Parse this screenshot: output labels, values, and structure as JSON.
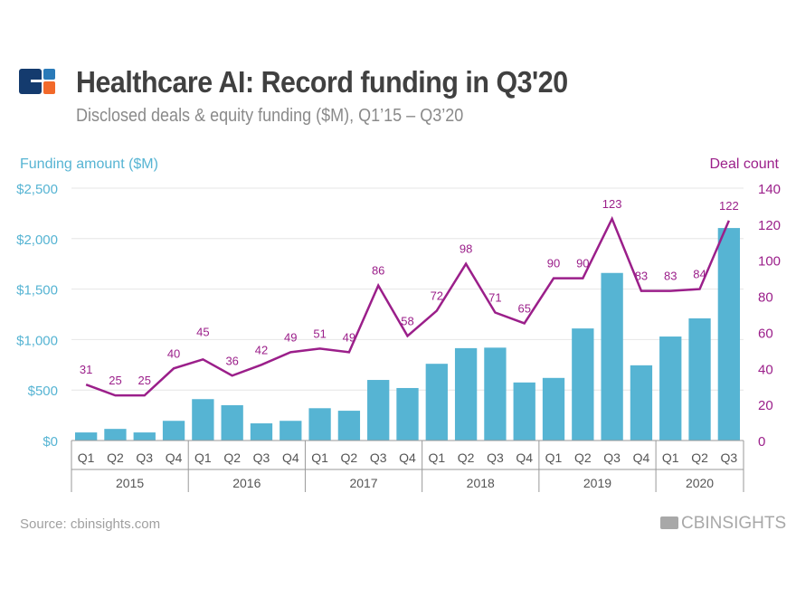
{
  "header": {
    "title": "Healthcare AI: Record funding in Q3'20",
    "subtitle": "Disclosed deals & equity funding ($M), Q1’15 – Q3’20"
  },
  "footer": {
    "source": "Source: cbinsights.com",
    "brand": "CBINSIGHTS"
  },
  "colors": {
    "bar": "#56b4d3",
    "line": "#9b1f8a",
    "logo_navy": "#143b6e",
    "logo_blue": "#2a7ab8",
    "logo_orange": "#f2692a"
  },
  "chart_data": {
    "type": "bar+line",
    "title": "Healthcare AI: Record funding in Q3'20",
    "ylabel": "Funding amount ($M)",
    "y2label": "Deal count",
    "ylim": [
      0,
      2500
    ],
    "y2lim": [
      0,
      140
    ],
    "yticks": [
      "$0",
      "$500",
      "$1,000",
      "$1,500",
      "$2,000",
      "$2,500"
    ],
    "y2ticks": [
      "0",
      "20",
      "40",
      "60",
      "80",
      "100",
      "120",
      "140"
    ],
    "grid": true,
    "categories": [
      "Q1",
      "Q2",
      "Q3",
      "Q4",
      "Q1",
      "Q2",
      "Q3",
      "Q4",
      "Q1",
      "Q2",
      "Q3",
      "Q4",
      "Q1",
      "Q2",
      "Q3",
      "Q4",
      "Q1",
      "Q2",
      "Q3",
      "Q4",
      "Q1",
      "Q2",
      "Q3"
    ],
    "years": [
      {
        "label": "2015",
        "count": 4
      },
      {
        "label": "2016",
        "count": 4
      },
      {
        "label": "2017",
        "count": 4
      },
      {
        "label": "2018",
        "count": 4
      },
      {
        "label": "2019",
        "count": 4
      },
      {
        "label": "2020",
        "count": 3
      }
    ],
    "series": [
      {
        "type": "bar",
        "axis": "left",
        "values": [
          80,
          115,
          80,
          195,
          410,
          350,
          170,
          195,
          320,
          295,
          600,
          520,
          760,
          915,
          920,
          575,
          620,
          1110,
          1660,
          745,
          1030,
          1210,
          2105
        ]
      },
      {
        "type": "line",
        "axis": "right",
        "values": [
          31,
          25,
          25,
          40,
          45,
          36,
          42,
          49,
          51,
          49,
          86,
          58,
          72,
          98,
          71,
          65,
          90,
          90,
          123,
          83,
          83,
          84,
          122
        ]
      }
    ]
  }
}
